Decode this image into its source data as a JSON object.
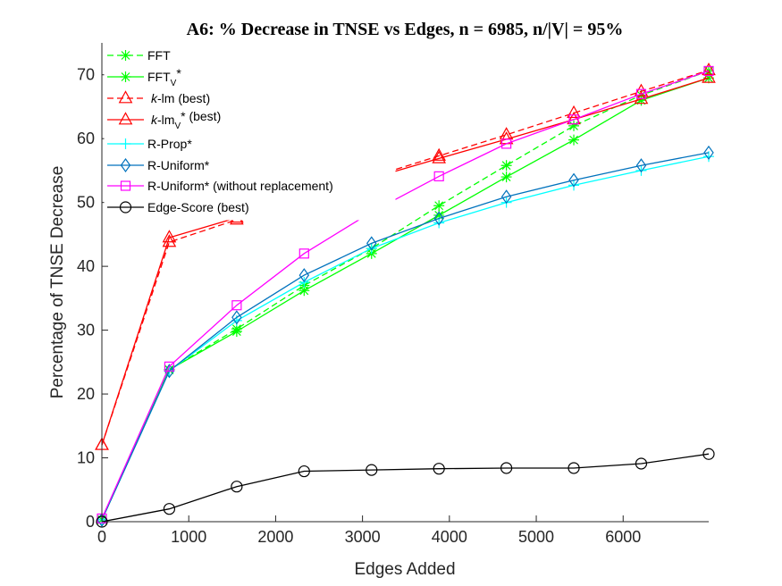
{
  "chart_data": {
    "type": "line",
    "title": "A6: % Decrease in TNSE vs Edges, n = 6985, n/|V| = 95%",
    "xlabel": "Edges Added",
    "ylabel": "Percentage of TNSE Decrease",
    "xlim": [
      0,
      6985
    ],
    "ylim": [
      0,
      75
    ],
    "xticks": [
      0,
      1000,
      2000,
      3000,
      4000,
      5000,
      6000
    ],
    "yticks": [
      0,
      10,
      20,
      30,
      40,
      50,
      60,
      70
    ],
    "x": [
      0,
      776,
      1552,
      2328,
      3104,
      3880,
      4656,
      5432,
      6208,
      6985
    ],
    "legend_position": "top-left",
    "grid": false,
    "series": [
      {
        "name": "FFT",
        "name_main": "FFT",
        "name_sub": "",
        "name_tail": "",
        "name_italic": "",
        "color": "#00ff00",
        "dash": "dashed",
        "marker": "star",
        "values": [
          0.3,
          23.8,
          30.2,
          37.0,
          42.8,
          49.5,
          55.8,
          62.0,
          66.8,
          70.6
        ]
      },
      {
        "name": "FFTV*",
        "name_main": "FFT",
        "name_sub": "V",
        "name_tail": "*",
        "name_italic": "",
        "color": "#00ff00",
        "dash": "solid",
        "marker": "star",
        "values": [
          0.3,
          23.8,
          29.8,
          36.2,
          42.0,
          48.0,
          54.0,
          59.8,
          66.0,
          69.5
        ]
      },
      {
        "name": "k-lm (best)",
        "name_main": "-lm (best)",
        "name_sub": "",
        "name_tail": "",
        "name_italic": "k",
        "color": "#ff0000",
        "dash": "dashed",
        "marker": "triangle",
        "values": [
          12.0,
          43.8,
          47.3,
          50.6,
          54.0,
          57.3,
          60.6,
          64.0,
          67.4,
          70.7
        ]
      },
      {
        "name": "k-lmV* (best)",
        "name_main": "-lm",
        "name_sub": "V",
        "name_tail": "* (best)",
        "name_italic": "k",
        "color": "#ff0000",
        "dash": "solid",
        "marker": "triangle",
        "values": [
          12.0,
          44.5,
          47.6,
          50.8,
          53.8,
          56.9,
          59.9,
          63.0,
          66.2,
          69.5
        ]
      },
      {
        "name": "R-Prop*",
        "name_main": "R-Prop*",
        "name_sub": "",
        "name_tail": "",
        "name_italic": "",
        "color": "#00ffff",
        "dash": "solid",
        "marker": "plus",
        "values": [
          0.3,
          23.6,
          31.5,
          37.5,
          42.8,
          46.8,
          50.0,
          52.7,
          55.0,
          57.2
        ]
      },
      {
        "name": "R-Uniform*",
        "name_main": "R-Uniform*",
        "name_sub": "",
        "name_tail": "",
        "name_italic": "",
        "color": "#0072bd",
        "dash": "solid",
        "marker": "diamond",
        "values": [
          0.3,
          23.6,
          32.0,
          38.6,
          43.6,
          47.5,
          50.9,
          53.5,
          55.8,
          57.8
        ]
      },
      {
        "name": "R-Uniform* (without replacement)",
        "name_main": "R-Uniform* (without replacement)",
        "name_sub": "",
        "name_tail": "",
        "name_italic": "",
        "color": "#ff00ff",
        "dash": "solid",
        "marker": "square",
        "values": [
          0.5,
          24.3,
          33.9,
          42.0,
          48.5,
          54.1,
          59.2,
          63.0,
          67.0,
          70.6
        ]
      },
      {
        "name": "Edge-Score (best)",
        "name_main": "Edge-Score (best)",
        "name_sub": "",
        "name_tail": "",
        "name_italic": "",
        "color": "#000000",
        "dash": "solid",
        "marker": "circle",
        "values": [
          0.0,
          2.0,
          5.5,
          7.9,
          8.1,
          8.3,
          8.4,
          8.4,
          9.1,
          10.6
        ]
      }
    ]
  }
}
